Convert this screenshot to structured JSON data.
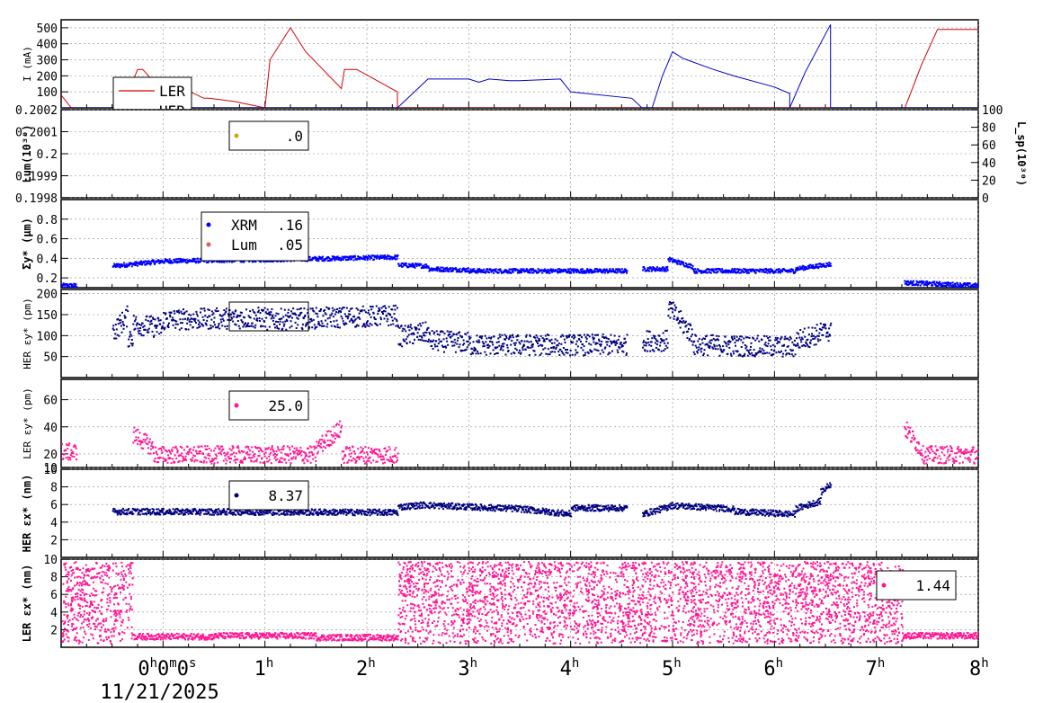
{
  "chart_data": [
    {
      "type": "line",
      "panel": "current",
      "ylabel": "I (mA)",
      "yticks": [
        "100",
        "200",
        "300",
        "400",
        "500"
      ],
      "ylim": [
        0,
        550
      ],
      "series": [
        {
          "name": "LER",
          "color": "#d40000",
          "x": [
            -1.0,
            -0.9,
            -0.4,
            -0.25,
            -0.2,
            0.0,
            0.05,
            0.2,
            0.4,
            0.45,
            0.7,
            1.0,
            1.05,
            1.25,
            1.4,
            1.75,
            1.78,
            1.9,
            2.3,
            2.3,
            7.28,
            7.45,
            7.6,
            8.0
          ],
          "y": [
            80,
            0,
            0,
            240,
            240,
            100,
            100,
            120,
            60,
            60,
            40,
            0,
            300,
            500,
            350,
            120,
            240,
            240,
            100,
            0,
            0,
            280,
            490,
            490
          ]
        },
        {
          "name": "HER",
          "color": "#0000cc",
          "x": [
            -1.0,
            2.3,
            2.5,
            2.6,
            3.0,
            3.1,
            3.2,
            3.4,
            3.5,
            3.9,
            4.0,
            4.6,
            4.7,
            4.8,
            4.9,
            5.0,
            5.1,
            5.4,
            5.6,
            6.0,
            6.15,
            6.15,
            6.3,
            6.55,
            6.55,
            8.0
          ],
          "y": [
            0,
            0,
            120,
            180,
            180,
            160,
            180,
            170,
            170,
            180,
            100,
            60,
            0,
            0,
            200,
            350,
            310,
            240,
            200,
            130,
            90,
            0,
            220,
            520,
            0,
            0
          ]
        }
      ]
    },
    {
      "type": "scatter",
      "panel": "luminosity",
      "ylabel": "Lum(10³⁰)",
      "ylabel_right": "L_sp(10³⁰)",
      "yticks": [
        "0.1998",
        "0.1999",
        "0.2",
        "0.2001",
        "0.2002"
      ],
      "yticks_right": [
        "0",
        "20",
        "40",
        "60",
        "80",
        "100"
      ],
      "legend_value": ".0",
      "series": [
        {
          "name": "",
          "color": "#d9a400",
          "x": [],
          "y": []
        }
      ]
    },
    {
      "type": "scatter",
      "panel": "sigma_y",
      "ylabel": "Σy* (μm)",
      "yticks": [
        "0.2",
        "0.4",
        "0.6",
        "0.8"
      ],
      "ylim": [
        0.1,
        1.0
      ],
      "series": [
        {
          "name": "XRM",
          "value": ".16",
          "color": "#0000ff",
          "segments": [
            [
              -1.0,
              -0.85,
              0.13,
              0.13
            ],
            [
              -0.5,
              0.0,
              0.33,
              0.38
            ],
            [
              0.0,
              1.3,
              0.38,
              0.4
            ],
            [
              1.3,
              2.3,
              0.4,
              0.42
            ],
            [
              2.3,
              2.6,
              0.34,
              0.33
            ],
            [
              2.6,
              3.0,
              0.3,
              0.29
            ],
            [
              3.0,
              4.55,
              0.28,
              0.28
            ],
            [
              4.7,
              4.95,
              0.3,
              0.3
            ],
            [
              4.95,
              5.2,
              0.4,
              0.32
            ],
            [
              5.2,
              6.2,
              0.28,
              0.28
            ],
            [
              6.2,
              6.55,
              0.3,
              0.35
            ],
            [
              7.27,
              8.0,
              0.16,
              0.13
            ]
          ]
        },
        {
          "name": "Lum",
          "value": ".05",
          "color": "#e06050",
          "segments": [
            [
              5.2,
              5.22,
              0.05,
              0.05
            ]
          ]
        }
      ]
    },
    {
      "type": "scatter",
      "panel": "her_eps_y",
      "ylabel": "HER εy* (pm)",
      "yticks": [
        "50",
        "100",
        "150",
        "200"
      ],
      "ylim": [
        0,
        210
      ],
      "series": [
        {
          "name": "",
          "color": "#000080",
          "segments": [
            [
              -0.5,
              -0.35,
              110,
              150
            ],
            [
              -0.35,
              -0.3,
              100,
              100
            ],
            [
              -0.3,
              0.0,
              130,
              120
            ],
            [
              0.0,
              1.0,
              140,
              145
            ],
            [
              1.0,
              2.3,
              140,
              150
            ],
            [
              2.3,
              2.6,
              100,
              110
            ],
            [
              2.6,
              3.0,
              90,
              85
            ],
            [
              3.0,
              4.55,
              80,
              80
            ],
            [
              4.7,
              4.95,
              90,
              90
            ],
            [
              4.95,
              5.2,
              170,
              100
            ],
            [
              5.2,
              6.2,
              80,
              75
            ],
            [
              6.2,
              6.55,
              90,
              115
            ]
          ]
        }
      ]
    },
    {
      "type": "scatter",
      "panel": "ler_eps_y",
      "ylabel": "LER εy* (pm)",
      "yticks": [
        "10",
        "20",
        "40",
        "60"
      ],
      "ylim": [
        10,
        75
      ],
      "legend_value": "25.0",
      "series": [
        {
          "name": "",
          "color": "#ff1493",
          "segments": [
            [
              -1.0,
              -0.85,
              22,
              22
            ],
            [
              -0.3,
              -0.1,
              35,
              25
            ],
            [
              -0.1,
              1.5,
              20,
              20
            ],
            [
              1.5,
              1.75,
              25,
              40
            ],
            [
              1.75,
              2.3,
              20,
              20
            ],
            [
              7.27,
              7.45,
              40,
              22
            ],
            [
              7.45,
              8.0,
              20,
              20
            ]
          ]
        }
      ]
    },
    {
      "type": "scatter",
      "panel": "her_eps_x",
      "ylabel": "HER εx* (nm)",
      "yticks": [
        "2",
        "4",
        "6",
        "8",
        "10"
      ],
      "ylim": [
        0,
        10
      ],
      "legend_value": "8.37",
      "series": [
        {
          "name": "",
          "color": "#000080",
          "segments": [
            [
              -0.5,
              2.3,
              5.3,
              5.2
            ],
            [
              2.3,
              2.6,
              5.8,
              6.1
            ],
            [
              2.6,
              3.5,
              6.0,
              5.6
            ],
            [
              3.5,
              4.0,
              5.6,
              5.0
            ],
            [
              4.0,
              4.55,
              5.7,
              5.7
            ],
            [
              4.7,
              4.95,
              5.0,
              5.8
            ],
            [
              4.95,
              5.6,
              6.0,
              5.6
            ],
            [
              5.6,
              6.2,
              5.3,
              5.0
            ],
            [
              6.2,
              6.45,
              5.6,
              6.5
            ],
            [
              6.45,
              6.55,
              7.5,
              8.5
            ]
          ]
        }
      ]
    },
    {
      "type": "scatter",
      "panel": "ler_eps_x",
      "ylabel": "LER εx* (nm)",
      "yticks": [
        "2",
        "4",
        "6",
        "8",
        "10"
      ],
      "ylim": [
        0,
        10
      ],
      "legend_value": "1.44",
      "series": [
        {
          "name": "",
          "color": "#ff1493",
          "scatter_ranges": [
            [
              -1.0,
              -0.3,
              0.5,
              9.8
            ],
            [
              2.3,
              7.25,
              0.5,
              9.8
            ]
          ],
          "segments": [
            [
              -0.3,
              0.5,
              1.3,
              1.3
            ],
            [
              0.5,
              1.5,
              1.4,
              1.4
            ],
            [
              1.5,
              2.3,
              1.2,
              1.2
            ],
            [
              7.25,
              8.0,
              1.4,
              1.4
            ]
          ]
        }
      ]
    }
  ],
  "x_axis": {
    "ticks": [
      {
        "h": 0,
        "label": "0",
        "sup": "h",
        "extra": "0",
        "extra_sup": "m",
        "extra2": "0",
        "extra2_sup": "s"
      },
      {
        "h": 1,
        "label": "1",
        "sup": "h"
      },
      {
        "h": 2,
        "label": "2",
        "sup": "h"
      },
      {
        "h": 3,
        "label": "3",
        "sup": "h"
      },
      {
        "h": 4,
        "label": "4",
        "sup": "h"
      },
      {
        "h": 5,
        "label": "5",
        "sup": "h"
      },
      {
        "h": 6,
        "label": "6",
        "sup": "h"
      },
      {
        "h": 7,
        "label": "7",
        "sup": "h"
      },
      {
        "h": 8,
        "label": "8",
        "sup": "h"
      }
    ],
    "date": "11/21/2025",
    "xlim": [
      -1.0,
      8.0
    ]
  }
}
